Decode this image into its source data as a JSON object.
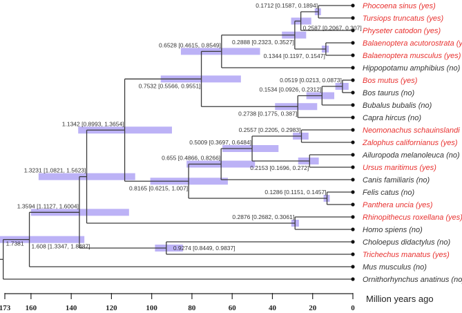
{
  "colors": {
    "highlight": "#e8312f",
    "normal": "#333333",
    "bar": "#8f7ff0"
  },
  "axis": {
    "label": "Million years ago",
    "ticks": [
      173,
      160,
      140,
      120,
      100,
      80,
      60,
      40,
      20,
      0
    ],
    "max": 173,
    "min": 0
  },
  "tips": [
    {
      "name": "Phocoena sinus (yes)",
      "hl": true
    },
    {
      "name": "Tursiops truncatus (yes)",
      "hl": true
    },
    {
      "name": "Physeter catodon (yes)",
      "hl": true
    },
    {
      "name": "Balaenoptera acutorostrata (yes)",
      "hl": true
    },
    {
      "name": "Balaenoptera musculus (yes)",
      "hl": true
    },
    {
      "name": "Hippopotamu amphibius (no)",
      "hl": false
    },
    {
      "name": "Bos mutus (yes)",
      "hl": true
    },
    {
      "name": "Bos taurus (no)",
      "hl": false
    },
    {
      "name": "Bubalus bubalis (no)",
      "hl": false
    },
    {
      "name": "Capra hircus (no)",
      "hl": false
    },
    {
      "name": "Neomonachus schauinslandi (yes)",
      "hl": true
    },
    {
      "name": "Zalophus californianus (yes)",
      "hl": true
    },
    {
      "name": "Ailuropoda melanoleuca (no)",
      "hl": false
    },
    {
      "name": "Ursus maritimus (yes)",
      "hl": true
    },
    {
      "name": "Canis familiaris (no)",
      "hl": false
    },
    {
      "name": "Felis catus (no)",
      "hl": false
    },
    {
      "name": "Panthera uncia (yes)",
      "hl": true
    },
    {
      "name": "Rhinopithecus roxellana (yes)",
      "hl": true
    },
    {
      "name": "Homo spiens (no)",
      "hl": false
    },
    {
      "name": "Choloepus didactylus (no)",
      "hl": false
    },
    {
      "name": "Trichechus manatus (yes)",
      "hl": true
    },
    {
      "name": "Mus musculus (no)",
      "hl": false
    },
    {
      "name": "Ornithorhynchus anatinus (no)",
      "hl": false
    }
  ],
  "tree": {
    "label": "1.7381",
    "age": 1.7381,
    "children": [
      {
        "label": "1.608 [1.3347, 1.8487]",
        "age": 1.608,
        "ci": [
          1.3347,
          1.8487
        ],
        "children": [
          {
            "label": "1.3594 [1.1127, 1.6004]",
            "age": 1.3594,
            "ci": [
              1.1127,
              1.6004
            ],
            "children": [
              {
                "label": "1.3231 [1.0821, 1.5623]",
                "age": 1.3231,
                "ci": [
                  1.0821,
                  1.5623
                ],
                "children": [
                  {
                    "label": "1.1342 [0.8993, 1.3654]",
                    "age": 1.1342,
                    "ci": [
                      0.8993,
                      1.3654
                    ],
                    "children": [
                      {
                        "label": "0.7532 [0.5566, 0.9551]",
                        "age": 0.7532,
                        "ci": [
                          0.5566,
                          0.9551
                        ],
                        "children": [
                          {
                            "label": "0.6528 [0.4615, 0.8549]",
                            "age": 0.6528,
                            "ci": [
                              0.4615,
                              0.8549
                            ],
                            "children": [
                              {
                                "label": "0.2888 [0.2323, 0.3527]",
                                "age": 0.2888,
                                "ci": [
                                  0.2323,
                                  0.3527
                                ],
                                "children": [
                                  {
                                    "label": "0.2587 [0.2067, 0.307]",
                                    "age": 0.2587,
                                    "ci": [
                                      0.2067,
                                      0.307
                                    ],
                                    "children": [
                                      {
                                        "label": "0.1712 [0.1587, 0.1894]",
                                        "age": 0.1712,
                                        "ci": [
                                          0.1587,
                                          0.1894
                                        ],
                                        "children": [
                                          {
                                            "tip": 0
                                          },
                                          {
                                            "tip": 1
                                          }
                                        ]
                                      },
                                      {
                                        "tip": 2
                                      }
                                    ]
                                  },
                                  {
                                    "label": "0.1344 [0.1197, 0.1547]",
                                    "age": 0.1344,
                                    "ci": [
                                      0.1197,
                                      0.1547
                                    ],
                                    "children": [
                                      {
                                        "tip": 3
                                      },
                                      {
                                        "tip": 4
                                      }
                                    ]
                                  }
                                ]
                              },
                              {
                                "tip": 5
                              }
                            ]
                          },
                          {
                            "label": "0.2738 [0.1775, 0.387]",
                            "age": 0.2738,
                            "ci": [
                              0.1775,
                              0.387
                            ],
                            "children": [
                              {
                                "label": "0.1534 [0.0926, 0.2312]",
                                "age": 0.1534,
                                "ci": [
                                  0.0926,
                                  0.2312
                                ],
                                "children": [
                                  {
                                    "label": "0.0519 [0.0213, 0.0873]",
                                    "age": 0.0519,
                                    "ci": [
                                      0.0213,
                                      0.0873
                                    ],
                                    "children": [
                                      {
                                        "tip": 6
                                      },
                                      {
                                        "tip": 7
                                      }
                                    ]
                                  },
                                  {
                                    "tip": 8
                                  }
                                ]
                              },
                              {
                                "tip": 9
                              }
                            ]
                          }
                        ]
                      },
                      {
                        "label": "0.8165 [0.6215, 1.007]",
                        "age": 0.8165,
                        "ci": [
                          0.6215,
                          1.007
                        ],
                        "children": [
                          {
                            "label": "0.655 [0.4866, 0.8266]",
                            "age": 0.655,
                            "ci": [
                              0.4866,
                              0.8266
                            ],
                            "children": [
                              {
                                "label": "0.5009 [0.3697, 0.6484]",
                                "age": 0.5009,
                                "ci": [
                                  0.3697,
                                  0.6484
                                ],
                                "children": [
                                  {
                                    "label": "0.2557 [0.2205, 0.2983]",
                                    "age": 0.2557,
                                    "ci": [
                                      0.2205,
                                      0.2983
                                    ],
                                    "children": [
                                      {
                                        "tip": 10
                                      },
                                      {
                                        "tip": 11
                                      }
                                    ]
                                  },
                                  {
                                    "label": "0.2153 [0.1696, 0.272]",
                                    "age": 0.2153,
                                    "ci": [
                                      0.1696,
                                      0.272
                                    ],
                                    "children": [
                                      {
                                        "tip": 12
                                      },
                                      {
                                        "tip": 13
                                      }
                                    ]
                                  }
                                ]
                              },
                              {
                                "tip": 14
                              }
                            ]
                          },
                          {
                            "label": "0.1286 [0.1151, 0.1457]",
                            "age": 0.1286,
                            "ci": [
                              0.1151,
                              0.1457
                            ],
                            "children": [
                              {
                                "tip": 15
                              },
                              {
                                "tip": 16
                              }
                            ]
                          }
                        ]
                      }
                    ]
                  },
                  {
                    "label": "0.2876 [0.2682, 0.3061]",
                    "age": 0.2876,
                    "ci": [
                      0.2682,
                      0.3061
                    ],
                    "children": [
                      {
                        "tip": 17
                      },
                      {
                        "tip": 18
                      }
                    ]
                  }
                ]
              },
              {
                "label": "0.9274 [0.8449, 0.9837]",
                "age": 0.9274,
                "ci": [
                  0.8449,
                  0.9837
                ],
                "children": [
                  {
                    "tip": 19
                  },
                  {
                    "tip": 20
                  }
                ]
              }
            ]
          },
          {
            "tip": 21
          }
        ]
      },
      {
        "tip": 22
      }
    ]
  }
}
